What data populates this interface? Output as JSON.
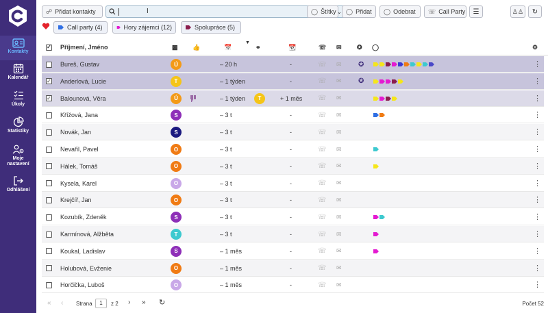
{
  "sidebar": {
    "items": [
      {
        "label": "Kontakty",
        "icon": "contacts-icon",
        "active": true
      },
      {
        "label": "Kalendář",
        "icon": "calendar-icon"
      },
      {
        "label": "Úkoly",
        "icon": "tasks-icon"
      },
      {
        "label": "Statistiky",
        "icon": "pie-chart-icon"
      },
      {
        "label": "Moje nastavení",
        "label1": "Moje",
        "label2": "nastavení",
        "icon": "settings-users-icon"
      },
      {
        "label": "Odhlášení",
        "icon": "logout-icon"
      }
    ]
  },
  "toolbar": {
    "add_contacts": "Přidat kontakty",
    "search_value": "",
    "stitky": "Štítky",
    "pridat": "Přidat",
    "odebrat": "Odebrat",
    "call_party": "Call Party"
  },
  "quick_tags": [
    {
      "label": "Call party (4)",
      "color": "#2f6fe4"
    },
    {
      "label": "Hory zájemci (12)",
      "color": "#e41ad1"
    },
    {
      "label": "Spolupráce (5)",
      "color": "#8a1e4e"
    }
  ],
  "table": {
    "header": {
      "name": "Příjmení, Jméno"
    },
    "rows": [
      {
        "name": "Bureš, Gustav",
        "avatar": "Ú",
        "avatar_color": "#f39a17",
        "checked": false,
        "state": "sel",
        "last": "– 20 h",
        "followup": "-",
        "thumb": false,
        "glasses": "",
        "share": true,
        "tags": [
          "#f5e61a",
          "#f5e61a",
          "#8a1e4e",
          "#e41ad1",
          "#3d3ad0",
          "#f07b14",
          "#3dc9cf",
          "#f5e61a",
          "#3dc9cf",
          "#4a48c8"
        ]
      },
      {
        "name": "Anderlová, Lucie",
        "avatar": "T",
        "avatar_color": "#f5c518",
        "checked": true,
        "state": "sel",
        "last": "– 1 týden",
        "followup": "-",
        "thumb": false,
        "glasses": "",
        "share": true,
        "tags": [
          "#f5e61a",
          "#e41ad1",
          "#e41ad1",
          "#8a1e4e",
          "#f5e61a"
        ]
      },
      {
        "name": "Balounová, Věra",
        "avatar": "Ú",
        "avatar_color": "#f39a17",
        "checked": true,
        "state": "sel2",
        "last": "– 1 týden",
        "followup": "+ 1 měs",
        "thumb": true,
        "glasses": "T",
        "share": false,
        "tags": [
          "#f5e61a",
          "#e41ad1",
          "#8a1e4e",
          "#f5e61a"
        ]
      },
      {
        "name": "Křížová, Jana",
        "avatar": "S",
        "avatar_color": "#8e2fb8",
        "checked": false,
        "state": "",
        "last": "– 3 t",
        "followup": "-",
        "tags": [
          "#2f6fe4",
          "#f07b14"
        ]
      },
      {
        "name": "Novák, Jan",
        "avatar": "S",
        "avatar_color": "#1b1a80",
        "checked": false,
        "state": "alt",
        "last": "– 3 t",
        "followup": "-",
        "tags": []
      },
      {
        "name": "Nevařil, Pavel",
        "avatar": "O",
        "avatar_color": "#f07b14",
        "checked": false,
        "state": "",
        "last": "– 3 t",
        "followup": "-",
        "tags": [
          "#3dc9cf"
        ]
      },
      {
        "name": "Hálek, Tomáš",
        "avatar": "O",
        "avatar_color": "#f07b14",
        "checked": false,
        "state": "alt",
        "last": "– 3 t",
        "followup": "-",
        "tags": [
          "#f5e61a"
        ]
      },
      {
        "name": "Kysela, Karel",
        "avatar": "O",
        "avatar_color": "#c9a8e8",
        "checked": false,
        "state": "",
        "last": "– 3 t",
        "followup": "-",
        "tags": []
      },
      {
        "name": "Krejčíř, Jan",
        "avatar": "O",
        "avatar_color": "#f07b14",
        "checked": false,
        "state": "alt",
        "last": "– 3 t",
        "followup": "-",
        "tags": []
      },
      {
        "name": "Kozubík, Zdeněk",
        "avatar": "S",
        "avatar_color": "#8e2fb8",
        "checked": false,
        "state": "",
        "last": "– 3 t",
        "followup": "-",
        "tags": [
          "#e41ad1",
          "#3dc9cf"
        ]
      },
      {
        "name": "Karmínová, Alžběta",
        "avatar": "T",
        "avatar_color": "#3dc9cf",
        "checked": false,
        "state": "alt",
        "last": "– 3 t",
        "followup": "-",
        "tags": [
          "#e41ad1"
        ]
      },
      {
        "name": "Koukal, Ladislav",
        "avatar": "S",
        "avatar_color": "#8e2fb8",
        "checked": false,
        "state": "",
        "last": "– 1 měs",
        "followup": "-",
        "tags": [
          "#e41ad1"
        ]
      },
      {
        "name": "Holubová, Evženie",
        "avatar": "O",
        "avatar_color": "#f07b14",
        "checked": false,
        "state": "alt",
        "last": "– 1 měs",
        "followup": "-",
        "tags": []
      },
      {
        "name": "Horčička, Luboš",
        "avatar": "O",
        "avatar_color": "#c9a8e8",
        "checked": false,
        "state": "",
        "last": "– 1 měs",
        "followup": "-",
        "tags": []
      }
    ]
  },
  "footer": {
    "strana": "Strana",
    "page": "1",
    "of": "z 2",
    "count": "Počet 52"
  }
}
